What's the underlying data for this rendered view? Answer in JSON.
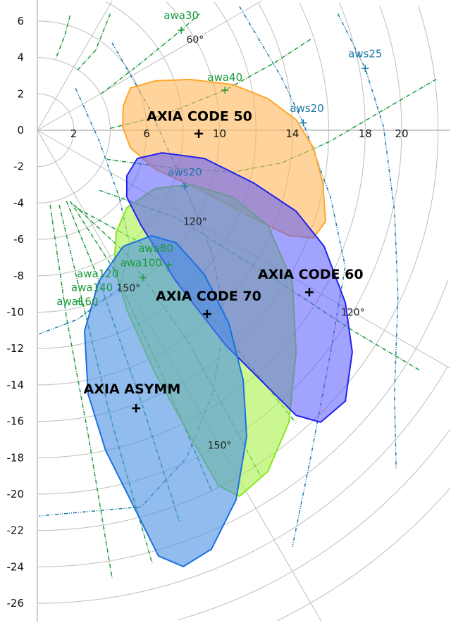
{
  "chart_data": {
    "type": "scatter",
    "title": "",
    "xlim": [
      0,
      22.7
    ],
    "ylim": [
      -27.6,
      7.2
    ],
    "x_ticks": [
      2,
      6,
      10,
      14,
      18,
      20
    ],
    "y_ticks": [
      6,
      4,
      2,
      0,
      -2,
      -4,
      -6,
      -8,
      -10,
      -12,
      -14,
      -16,
      -18,
      -20,
      -22,
      -24,
      -26
    ],
    "grid": {
      "circle_step": 2,
      "circle_max": 30,
      "radial_angles": [
        30,
        60,
        90,
        120,
        150
      ]
    },
    "angle_labels": [
      {
        "text": "60°",
        "angle": 60,
        "r": 10
      },
      {
        "text": "120°",
        "angle": 120,
        "r": 10
      },
      {
        "text": "150°",
        "angle": 150,
        "r": 10
      },
      {
        "text": "120°",
        "angle": 120,
        "r": 20
      },
      {
        "text": "150°",
        "angle": 150,
        "r": 20
      }
    ],
    "colors": {
      "awa": "#1a9a3a",
      "aws": "#1a78a8",
      "grid": "#bdbdbd"
    },
    "aws_curves": [
      [
        [
          2.1,
          2.3
        ],
        [
          3.4,
          -0.6
        ],
        [
          4.5,
          -3.7
        ],
        [
          5.1,
          -6.4
        ],
        [
          4.5,
          -8.7
        ],
        [
          2.2,
          -10.4
        ],
        [
          0.1,
          -11.2
        ]
      ],
      [
        [
          4.1,
          4.8
        ],
        [
          6.1,
          1.3
        ],
        [
          8.1,
          -3.1
        ],
        [
          9.6,
          -6.8
        ],
        [
          10.3,
          -10.3
        ],
        [
          9.6,
          -14.5
        ],
        [
          8.2,
          -18.0
        ],
        [
          5.7,
          -20.7
        ],
        [
          0.1,
          -21.2
        ]
      ],
      [
        [
          11.1,
          6.8
        ],
        [
          13.4,
          2.9
        ],
        [
          14.6,
          0.4
        ],
        [
          16.1,
          -3.7
        ],
        [
          16.9,
          -7.5
        ],
        [
          16.1,
          -12.2
        ],
        [
          15.0,
          -18.0
        ],
        [
          14.0,
          -22.9
        ]
      ],
      [
        [
          16.5,
          6.4
        ],
        [
          18.0,
          3.4
        ],
        [
          19.0,
          0.2
        ],
        [
          19.6,
          -4.4
        ],
        [
          19.8,
          -9.1
        ],
        [
          19.6,
          -14.5
        ],
        [
          19.7,
          -18.6
        ]
      ]
    ],
    "awa_curves": [
      [
        [
          3.5,
          2.0
        ],
        [
          5.7,
          3.7
        ],
        [
          7.9,
          5.5
        ],
        [
          8.9,
          6.4
        ]
      ],
      [
        [
          4.0,
          0.1
        ],
        [
          6.8,
          0.8
        ],
        [
          10.3,
          2.2
        ],
        [
          13.0,
          3.7
        ],
        [
          15.0,
          5.0
        ]
      ],
      [
        [
          3.8,
          -1.6
        ],
        [
          7.6,
          -2.1
        ],
        [
          10.7,
          -2.3
        ],
        [
          13.4,
          -1.8
        ],
        [
          16.1,
          -0.6
        ],
        [
          18.8,
          1.0
        ],
        [
          21.9,
          2.8
        ]
      ],
      [
        [
          1.8,
          6.3
        ],
        [
          1.5,
          5.2
        ],
        [
          1.0,
          3.9
        ]
      ],
      [
        [
          4.0,
          6.4
        ],
        [
          3.2,
          4.4
        ],
        [
          2.2,
          3.3
        ]
      ],
      [
        [
          0.7,
          -4.1
        ],
        [
          1.6,
          -10.3
        ],
        [
          2.8,
          -16.8
        ],
        [
          4.1,
          -24.6
        ]
      ],
      [
        [
          1.2,
          -4.1
        ],
        [
          2.4,
          -9.1
        ],
        [
          4.1,
          -16.1
        ],
        [
          6.3,
          -23.8
        ]
      ],
      [
        [
          1.6,
          -3.9
        ],
        [
          3.4,
          -8.3
        ],
        [
          5.7,
          -14.9
        ],
        [
          7.8,
          -21.5
        ]
      ],
      [
        [
          1.8,
          -3.9
        ],
        [
          4.1,
          -7.5
        ],
        [
          6.8,
          -13.3
        ],
        [
          9.6,
          -19.9
        ]
      ],
      [
        [
          2.0,
          -4.1
        ],
        [
          4.9,
          -6.8
        ],
        [
          8.4,
          -11.8
        ],
        [
          12.3,
          -19.1
        ]
      ],
      [
        [
          2.2,
          -4.3
        ],
        [
          5.7,
          -6.2
        ],
        [
          9.6,
          -10.3
        ],
        [
          14.2,
          -16.1
        ]
      ],
      [
        [
          3.4,
          -3.3
        ],
        [
          7.6,
          -4.8
        ],
        [
          12.6,
          -7.9
        ],
        [
          17.3,
          -11.0
        ],
        [
          21.0,
          -13.2
        ]
      ]
    ],
    "curve_labels": [
      {
        "text": "awa30",
        "kind": "awa",
        "label": [
          7.9,
          6.3
        ],
        "marker": [
          7.9,
          5.5
        ]
      },
      {
        "text": "awa40",
        "kind": "awa",
        "label": [
          10.3,
          2.9
        ],
        "marker": [
          10.3,
          2.2
        ]
      },
      {
        "text": "awa80",
        "kind": "awa",
        "label": [
          6.5,
          -6.5
        ],
        "marker": null
      },
      {
        "text": "awa100",
        "kind": "awa",
        "label": [
          5.7,
          -7.3
        ],
        "marker": [
          7.2,
          -7.4
        ]
      },
      {
        "text": "awa120",
        "kind": "awa",
        "label": [
          4.4,
          -7.9
        ],
        "marker": [
          5.8,
          -8.1
        ]
      },
      {
        "text": "awa140",
        "kind": "awa",
        "label": [
          3.0,
          -8.3
        ],
        "marker": null
      },
      {
        "text": "awa160",
        "kind": "awa",
        "label": [
          2.2,
          -8.6
        ],
        "marker": [
          2.3,
          -9.4
        ]
      },
      {
        "text": "aws20",
        "kind": "aws",
        "label": [
          14.8,
          1.2
        ],
        "marker": [
          14.6,
          0.4
        ]
      },
      {
        "text": "aws25",
        "kind": "aws",
        "label": [
          18.0,
          4.2
        ],
        "marker": [
          18.0,
          3.4
        ]
      },
      {
        "text": "aws20",
        "kind": "aws",
        "label": [
          8.1,
          -2.3
        ],
        "marker": [
          8.1,
          -3.1
        ]
      }
    ],
    "sails": [
      {
        "name": "AXIA CODE 50",
        "fill": "#ffb85a",
        "stroke": "#ffa62b",
        "opacity": 0.6,
        "label": [
          8.9,
          0.8
        ],
        "center": [
          8.86,
          -0.19
        ],
        "outline": [
          [
            4.72,
            1.35
          ],
          [
            5.11,
            2.32
          ],
          [
            6.46,
            2.71
          ],
          [
            8.39,
            2.79
          ],
          [
            10.72,
            2.51
          ],
          [
            12.65,
            1.74
          ],
          [
            14.2,
            0.58
          ],
          [
            15.16,
            -0.97
          ],
          [
            15.67,
            -2.9
          ],
          [
            15.82,
            -5.03
          ],
          [
            15.16,
            -5.92
          ],
          [
            13.81,
            -5.8
          ],
          [
            11.49,
            -4.64
          ],
          [
            8.78,
            -3.21
          ],
          [
            6.46,
            -2.13
          ],
          [
            5.11,
            -0.97
          ],
          [
            4.68,
            0.19
          ]
        ]
      },
      {
        "name": "AXIA CODE 70",
        "fill": "#a6f24a",
        "stroke": "#86e81e",
        "opacity": 0.6,
        "label": [
          9.4,
          -9.1
        ],
        "center": [
          9.32,
          -10.1
        ],
        "outline": [
          [
            4.33,
            -5.61
          ],
          [
            4.91,
            -4.26
          ],
          [
            6.46,
            -3.21
          ],
          [
            8.39,
            -2.98
          ],
          [
            10.72,
            -3.68
          ],
          [
            12.65,
            -5.22
          ],
          [
            14.0,
            -8.32
          ],
          [
            14.2,
            -12.19
          ],
          [
            13.81,
            -16.05
          ],
          [
            12.65,
            -18.76
          ],
          [
            11.1,
            -20.12
          ],
          [
            9.94,
            -19.54
          ],
          [
            8.39,
            -16.83
          ],
          [
            6.46,
            -13.35
          ],
          [
            4.91,
            -9.86
          ],
          [
            4.22,
            -7.54
          ]
        ]
      },
      {
        "name": "AXIA CODE 60",
        "fill": "#5555ff",
        "stroke": "#2222ee",
        "opacity": 0.55,
        "label": [
          15.0,
          -7.9
        ],
        "center": [
          14.93,
          -8.9
        ],
        "outline": [
          [
            4.91,
            -2.51
          ],
          [
            5.49,
            -1.55
          ],
          [
            6.85,
            -1.24
          ],
          [
            9.17,
            -1.55
          ],
          [
            11.88,
            -2.9
          ],
          [
            14.2,
            -4.45
          ],
          [
            15.74,
            -6.38
          ],
          [
            16.91,
            -9.48
          ],
          [
            17.29,
            -12.19
          ],
          [
            16.91,
            -14.89
          ],
          [
            15.55,
            -16.05
          ],
          [
            14.2,
            -15.67
          ],
          [
            12.65,
            -14.12
          ],
          [
            10.33,
            -11.8
          ],
          [
            7.62,
            -8.32
          ],
          [
            5.69,
            -5.22
          ],
          [
            4.91,
            -3.68
          ]
        ]
      },
      {
        "name": "AXIA ASYMM",
        "fill": "#4a90e2",
        "stroke": "#1a70e0",
        "opacity": 0.6,
        "label": [
          5.2,
          -14.2
        ],
        "center": [
          5.42,
          -15.28
        ],
        "outline": [
          [
            2.59,
            -11.03
          ],
          [
            3.37,
            -8.32
          ],
          [
            4.72,
            -6.38
          ],
          [
            6.27,
            -5.8
          ],
          [
            7.62,
            -6.19
          ],
          [
            9.17,
            -7.93
          ],
          [
            10.52,
            -10.64
          ],
          [
            11.3,
            -13.73
          ],
          [
            11.49,
            -16.83
          ],
          [
            10.91,
            -20.31
          ],
          [
            9.56,
            -23.02
          ],
          [
            8.01,
            -23.98
          ],
          [
            6.65,
            -23.4
          ],
          [
            5.3,
            -20.7
          ],
          [
            3.75,
            -17.6
          ],
          [
            2.79,
            -14.51
          ]
        ]
      }
    ]
  }
}
